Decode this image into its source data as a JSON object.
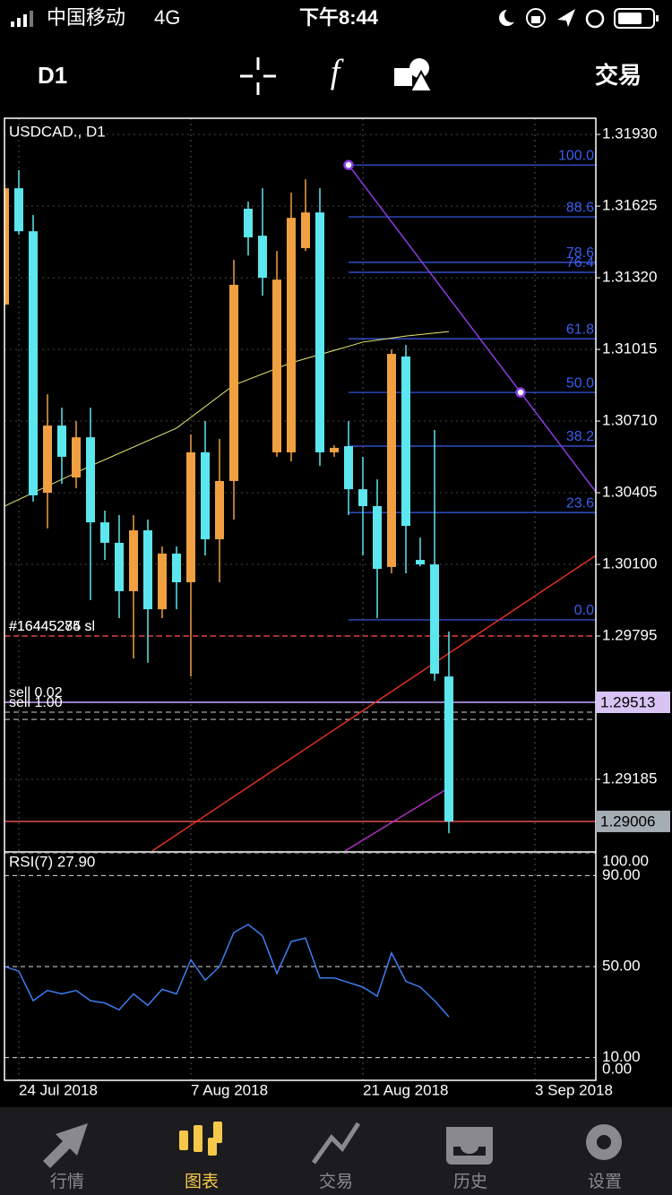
{
  "status_bar": {
    "carrier": "中国移动",
    "network": "4G",
    "time": "下午8:44"
  },
  "toolbar": {
    "period": "D1",
    "trade": "交易"
  },
  "tab_bar": {
    "tabs": [
      "行情",
      "图表",
      "交易",
      "历史",
      "设置"
    ],
    "active": 1
  },
  "chart_data": [
    {
      "type": "candlestick",
      "title": "USDCAD., D1",
      "xlim": [
        0,
        41.25
      ],
      "ylim": [
        1.2888,
        1.31999
      ],
      "xticks": [
        {
          "value": 1,
          "label": "24 Jul 2018"
        },
        {
          "value": 13,
          "label": "7 Aug 2018"
        },
        {
          "value": 25,
          "label": "21 Aug 2018"
        },
        {
          "value": 37,
          "label": "3 Sep 2018"
        }
      ],
      "yticks": [
        {
          "value": 1.3193,
          "label": "1.31930"
        },
        1.31625,
        {
          "value": 1.3132,
          "label": "1.31320"
        },
        1.31015,
        {
          "value": 1.3071,
          "label": "1.30710"
        },
        1.30405,
        {
          "value": 1.301,
          "label": "1.30100"
        },
        1.29795,
        1.29185
      ],
      "grid": true,
      "up_color": "#f0a040",
      "down_color": "#5ce6ee",
      "open": [
        1.31206,
        1.31701,
        1.31518,
        1.30405,
        1.30691,
        1.3047,
        1.30641,
        1.30279,
        1.30192,
        1.29986,
        1.30245,
        1.29909,
        1.30146,
        1.30024,
        1.30577,
        1.30207,
        1.30455,
        1.31614,
        1.31499,
        1.30577,
        1.30577,
        1.31446,
        1.31598,
        1.30577,
        1.30603,
        1.3042,
        1.30348,
        1.30089,
        1.30985,
        1.30119,
        1.301,
        1.29623
      ],
      "high": [
        1.3172,
        1.31778,
        1.31587,
        1.30824,
        1.30767,
        1.3071,
        1.30767,
        1.30329,
        1.3031,
        1.3031,
        1.30291,
        1.30176,
        1.30176,
        1.30653,
        1.3071,
        1.30634,
        1.31396,
        1.31644,
        1.31701,
        1.31434,
        1.31682,
        1.31739,
        1.31701,
        1.30607,
        1.3071,
        1.30558,
        1.30462,
        1.31015,
        1.31034,
        1.30214,
        1.30672,
        1.29814
      ],
      "low": [
        1.31187,
        1.31503,
        1.30367,
        1.30253,
        1.30443,
        1.30424,
        1.29948,
        1.30119,
        1.29871,
        1.297,
        1.29681,
        1.29871,
        1.29909,
        1.29623,
        1.30138,
        1.30024,
        1.30291,
        1.31415,
        1.31244,
        1.30558,
        1.30538,
        1.31434,
        1.30519,
        1.30558,
        1.3031,
        1.30138,
        1.29871,
        1.30062,
        1.30062,
        1.30092,
        1.29604,
        1.28956
      ],
      "close": [
        1.31701,
        1.31518,
        1.30394,
        1.30691,
        1.30558,
        1.30641,
        1.30279,
        1.30192,
        1.29986,
        1.30245,
        1.29909,
        1.30146,
        1.30024,
        1.30577,
        1.30207,
        1.30455,
        1.3129,
        1.31492,
        1.3132,
        1.31312,
        1.31575,
        1.31598,
        1.30577,
        1.30596,
        1.3042,
        1.30348,
        1.30081,
        1.30996,
        1.30264,
        1.301,
        1.29635,
        1.29006
      ],
      "series": [
        {
          "color": "#e8e870",
          "x": [
            0,
            6,
            12,
            16,
            20,
            25,
            28,
            31
          ],
          "values": [
            1.30348,
            1.30519,
            1.3068,
            1.30863,
            1.30958,
            1.31046,
            1.31072,
            1.31091
          ]
        }
      ],
      "fibonacci": {
        "color": "#3a5ef0",
        "x": 24,
        "high": 1.318,
        "low": 1.29864,
        "levels": [
          {
            "value": 100,
            "label": "100.0"
          },
          88.6,
          78.6,
          76.4,
          61.8,
          {
            "value": 50,
            "label": "50.0"
          },
          38.2,
          23.6,
          {
            "value": 0,
            "label": "0.0"
          }
        ]
      },
      "trendlines": [
        {
          "color": "#8a3ce0",
          "x": [
            24,
            36
          ],
          "values": [
            1.318,
            1.30832
          ],
          "extend": true,
          "anchors": true
        },
        {
          "color": "#e03020",
          "x": [
            10.3,
            41.25
          ],
          "values": [
            1.2888,
            1.30138
          ]
        },
        {
          "color": "#b030c0",
          "x": [
            23.75,
            30.94
          ],
          "values": [
            1.2888,
            1.29147
          ]
        }
      ],
      "levels": [
        {
          "value": 1.29795,
          "labels": [
            "#16445274 sl",
            "#16445285 sl"
          ],
          "color": "#e04040",
          "style": "dashed"
        },
        {
          "value": 1.29513,
          "labels": [
            "sell 0.02"
          ],
          "color": "#c8a8ff",
          "style": "solid",
          "tag": "#d8c4f4"
        },
        {
          "value": 1.29471,
          "labels": [
            "sell 1.00"
          ],
          "color": "#8a8a8a",
          "style": "dashed"
        },
        {
          "value": 1.2944,
          "color": "#8a8a8a",
          "style": "dashed"
        },
        {
          "value": 1.29006,
          "color": "#e05050",
          "style": "solid",
          "tag": "#a4acb4"
        }
      ]
    },
    {
      "type": "line",
      "title": "RSI(7) 27.90",
      "ylim": [
        0,
        100
      ],
      "yticks": [
        {
          "value": 100,
          "label": "100.00"
        },
        {
          "value": 90,
          "label": "90.00"
        },
        {
          "value": 50,
          "label": "50.00"
        },
        {
          "value": 10,
          "label": "10.00"
        },
        {
          "value": 0,
          "label": "0.00"
        }
      ],
      "series": [
        {
          "color": "#3d7ef0",
          "values": [
            50,
            48,
            35,
            39.5,
            38,
            39.5,
            35,
            34,
            31,
            38,
            33,
            40,
            38,
            53,
            44,
            50,
            65,
            68.5,
            63.5,
            47,
            61,
            62.5,
            45,
            45,
            43,
            41,
            37,
            56,
            43.5,
            41,
            35,
            27.9
          ]
        }
      ]
    }
  ]
}
